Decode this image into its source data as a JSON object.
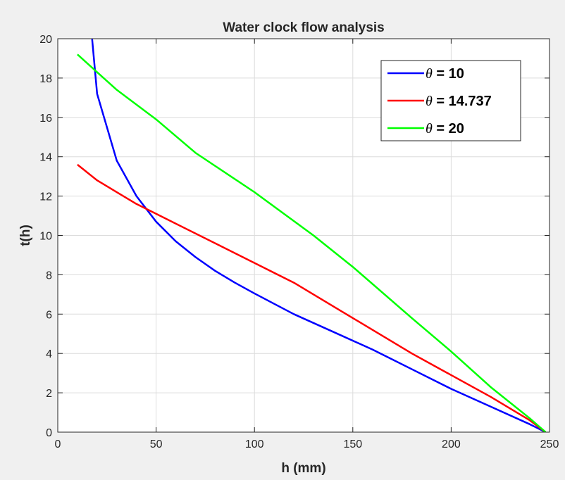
{
  "chart_data": {
    "type": "line",
    "title": "Water clock flow analysis",
    "xlabel": "h (mm)",
    "ylabel": "t(h)",
    "xlim": [
      0,
      250
    ],
    "ylim": [
      0,
      20
    ],
    "xticks": [
      0,
      50,
      100,
      150,
      200,
      250
    ],
    "yticks": [
      0,
      2,
      4,
      6,
      8,
      10,
      12,
      14,
      16,
      18,
      20
    ],
    "grid": true,
    "legend_position": "top-right",
    "series": [
      {
        "name": "θ = 10",
        "legend_symbol": "θ",
        "legend_value": " = 10",
        "color": "#0000ff",
        "x": [
          17,
          20,
          30,
          40,
          50,
          60,
          70,
          80,
          90,
          100,
          120,
          140,
          160,
          180,
          200,
          220,
          240,
          248
        ],
        "y": [
          20.5,
          17.2,
          13.8,
          12.0,
          10.7,
          9.7,
          8.9,
          8.2,
          7.6,
          7.05,
          6.0,
          5.1,
          4.2,
          3.2,
          2.2,
          1.3,
          0.4,
          0
        ]
      },
      {
        "name": "θ = 14.737",
        "legend_symbol": "θ",
        "legend_value": " = 14.737",
        "color": "#ff0000",
        "x": [
          10,
          20,
          30,
          40,
          50,
          60,
          80,
          100,
          120,
          150,
          180,
          200,
          220,
          240,
          248
        ],
        "y": [
          13.6,
          12.8,
          12.2,
          11.6,
          11.1,
          10.6,
          9.6,
          8.6,
          7.6,
          5.8,
          4.0,
          2.9,
          1.8,
          0.6,
          0
        ]
      },
      {
        "name": "θ = 20",
        "legend_symbol": "θ",
        "legend_value": " = 20",
        "color": "#00ff00",
        "x": [
          10,
          20,
          30,
          50,
          70,
          100,
          130,
          150,
          180,
          200,
          220,
          240,
          248
        ],
        "y": [
          19.2,
          18.3,
          17.4,
          15.9,
          14.2,
          12.2,
          10.0,
          8.4,
          5.8,
          4.1,
          2.3,
          0.7,
          0
        ]
      }
    ]
  }
}
